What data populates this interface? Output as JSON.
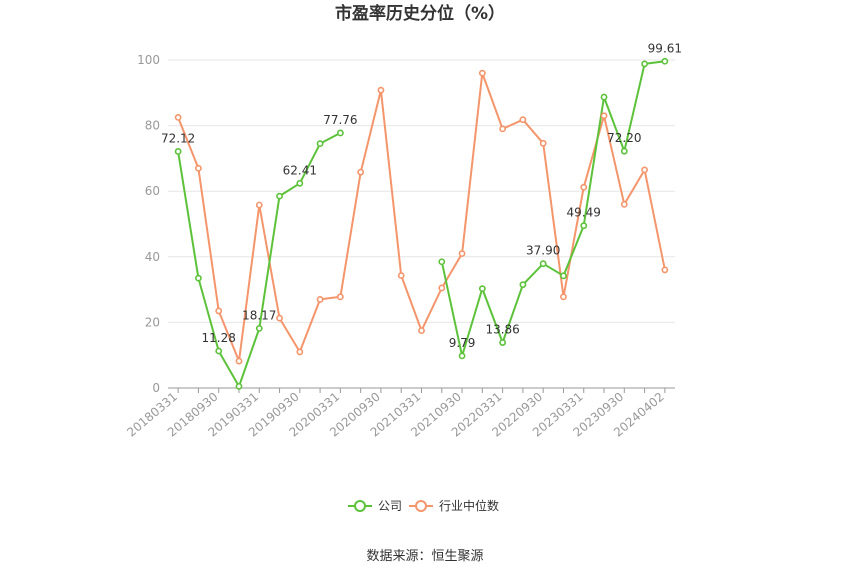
{
  "chart_data": {
    "type": "line",
    "title": "市盈率历史分位（%）",
    "source": "数据来源：恒生聚源",
    "ylim": [
      0,
      100
    ],
    "yticks": [
      0,
      20,
      40,
      60,
      80,
      100
    ],
    "grid": true,
    "legend_position": "bottom",
    "x_tick_labels": [
      "20180331",
      "20180930",
      "20190331",
      "20190930",
      "20200331",
      "20200930",
      "20210331",
      "20210930",
      "20220331",
      "20220930",
      "20230331",
      "20230930",
      "20240402"
    ],
    "x": [
      "20180331",
      "20180630",
      "20180930",
      "20181231",
      "20190331",
      "20190630",
      "20190930",
      "20191231",
      "20200331",
      "20200630",
      "20200930",
      "20201231",
      "20210331",
      "20210630",
      "20210930",
      "20211231",
      "20220331",
      "20220630",
      "20220930",
      "20221231",
      "20230331",
      "20230630",
      "20230930",
      "20231231",
      "20240402"
    ],
    "series": [
      {
        "name": "公司",
        "color": "#5cc23a",
        "values": [
          72.12,
          33.5,
          11.28,
          0.5,
          18.17,
          58.5,
          62.41,
          74.5,
          77.76,
          null,
          null,
          null,
          null,
          38.5,
          9.79,
          30.3,
          13.86,
          31.5,
          37.9,
          34.2,
          49.49,
          88.7,
          72.2,
          98.8,
          99.61
        ],
        "labels": [
          {
            "index": 0,
            "text": "72.12"
          },
          {
            "index": 2,
            "text": "11.28"
          },
          {
            "index": 4,
            "text": "18.17"
          },
          {
            "index": 6,
            "text": "62.41"
          },
          {
            "index": 8,
            "text": "77.76"
          },
          {
            "index": 14,
            "text": "9.79"
          },
          {
            "index": 16,
            "text": "13.86"
          },
          {
            "index": 18,
            "text": "37.90"
          },
          {
            "index": 20,
            "text": "49.49"
          },
          {
            "index": 22,
            "text": "72.20"
          },
          {
            "index": 24,
            "text": "99.61"
          }
        ]
      },
      {
        "name": "行业中位数",
        "color": "#f4956b",
        "values": [
          82.5,
          67.0,
          23.5,
          8.2,
          55.8,
          21.3,
          11.0,
          27.0,
          27.8,
          65.8,
          90.8,
          34.3,
          17.5,
          30.5,
          41.0,
          96.0,
          79.0,
          81.8,
          74.6,
          27.8,
          61.2,
          83.0,
          56.0,
          66.5,
          36.0
        ],
        "labels": []
      }
    ]
  }
}
